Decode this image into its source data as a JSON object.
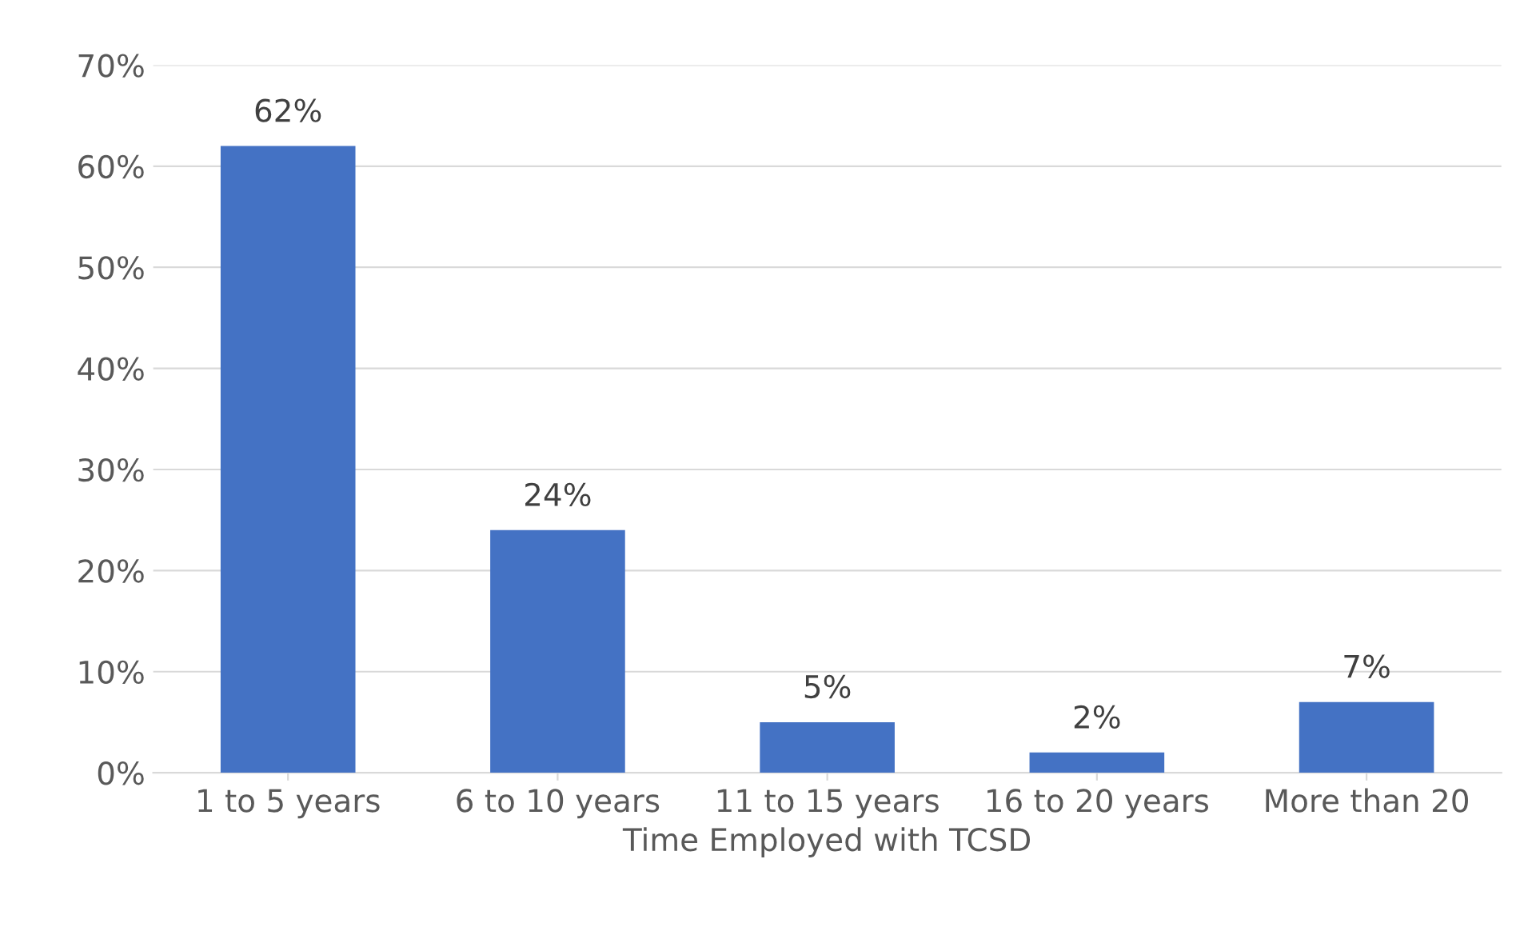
{
  "chart_data": {
    "type": "bar",
    "xlabel": "Time Employed with TCSD",
    "categories": [
      "1 to 5 years",
      "6 to 10 years",
      "11 to 15 years",
      "16 to 20 years",
      "More than 20"
    ],
    "values": [
      62,
      24,
      5,
      2,
      7
    ],
    "color": "#4472c4",
    "ylim": [
      0,
      70
    ],
    "yticks": [
      {
        "value": 0,
        "label": "0%"
      },
      {
        "value": 10,
        "label": "10%"
      },
      {
        "value": 20,
        "label": "20%"
      },
      {
        "value": 30,
        "label": "30%"
      },
      {
        "value": 40,
        "label": "40%"
      },
      {
        "value": 50,
        "label": "50%"
      },
      {
        "value": 60,
        "label": "60%"
      },
      {
        "value": 70,
        "label": "70%"
      }
    ],
    "value_labels": [
      "62%",
      "24%",
      "5%",
      "2%",
      "7%"
    ],
    "grid": "y",
    "legend": false
  }
}
